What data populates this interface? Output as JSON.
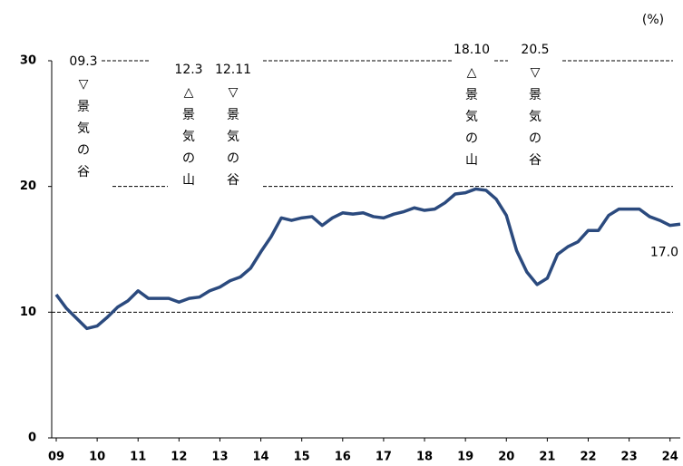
{
  "chart_data": {
    "type": "line",
    "unit": "(%)",
    "x": [
      2009,
      2009.25,
      2009.5,
      2009.75,
      2010,
      2010.25,
      2010.5,
      2010.75,
      2011,
      2011.25,
      2011.5,
      2011.75,
      2012,
      2012.25,
      2012.5,
      2012.75,
      2013,
      2013.25,
      2013.5,
      2013.75,
      2014,
      2014.25,
      2014.5,
      2014.75,
      2015,
      2015.25,
      2015.5,
      2015.75,
      2016,
      2016.25,
      2016.5,
      2016.75,
      2017,
      2017.25,
      2017.5,
      2017.75,
      2018,
      2018.25,
      2018.5,
      2018.75,
      2019,
      2019.25,
      2019.5,
      2019.75,
      2020,
      2020.25,
      2020.5,
      2020.75,
      2021,
      2021.25,
      2021.5,
      2021.75,
      2022,
      2022.25,
      2022.5,
      2022.75,
      2023,
      2023.25,
      2023.5,
      2023.75,
      2024,
      2024.25
    ],
    "series": [
      {
        "color": "#2b4a7e",
        "values": [
          11.4,
          10.3,
          9.5,
          8.7,
          8.9,
          9.6,
          10.4,
          10.9,
          11.7,
          11.1,
          11.1,
          11.1,
          10.8,
          11.1,
          11.2,
          11.7,
          12.0,
          12.5,
          12.8,
          13.5,
          14.8,
          16.0,
          17.5,
          17.3,
          17.5,
          17.6,
          16.9,
          17.5,
          17.9,
          17.8,
          17.9,
          17.6,
          17.5,
          17.8,
          18.0,
          18.3,
          18.1,
          18.2,
          18.7,
          19.4,
          19.5,
          19.8,
          19.7,
          19.0,
          17.7,
          14.9,
          13.2,
          12.2,
          12.7,
          14.6,
          15.2,
          15.6,
          16.5,
          16.5,
          17.7,
          18.2,
          18.2,
          18.2,
          17.6,
          17.3,
          16.9,
          17.0
        ],
        "value_labels": [
          null,
          null,
          null,
          null,
          null,
          null,
          null,
          null,
          null,
          null,
          null,
          null,
          null,
          null,
          null,
          null,
          null,
          null,
          null,
          null,
          null,
          null,
          null,
          null,
          null,
          null,
          null,
          null,
          null,
          null,
          null,
          null,
          null,
          null,
          null,
          null,
          null,
          null,
          null,
          null,
          null,
          null,
          null,
          null,
          null,
          null,
          null,
          null,
          null,
          null,
          null,
          null,
          null,
          null,
          null,
          null,
          null,
          null,
          null,
          null,
          null,
          "17.0"
        ]
      }
    ],
    "xlim": [
      2009,
      2024.25
    ],
    "xticks": [
      {
        "value": 2009,
        "label": "09"
      },
      {
        "value": 2010,
        "label": "10"
      },
      {
        "value": 2011,
        "label": "11"
      },
      {
        "value": 2012,
        "label": "12"
      },
      {
        "value": 2013,
        "label": "13"
      },
      {
        "value": 2014,
        "label": "14"
      },
      {
        "value": 2015,
        "label": "15"
      },
      {
        "value": 2016,
        "label": "16"
      },
      {
        "value": 2017,
        "label": "17"
      },
      {
        "value": 2018,
        "label": "18"
      },
      {
        "value": 2019,
        "label": "19"
      },
      {
        "value": 2020,
        "label": "20"
      },
      {
        "value": 2021,
        "label": "21"
      },
      {
        "value": 2022,
        "label": "22"
      },
      {
        "value": 2023,
        "label": "23"
      },
      {
        "value": 2024,
        "label": "24"
      }
    ],
    "ylim": [
      0,
      30
    ],
    "yticks": [
      0,
      10,
      20,
      30
    ],
    "grid": true,
    "annotations": [
      {
        "date": "09.3",
        "mark": "▽",
        "text": [
          "景",
          "気",
          "の",
          "谷"
        ]
      },
      {
        "date": "12.3",
        "mark": "△",
        "text": [
          "景",
          "気",
          "の",
          "山"
        ]
      },
      {
        "date": "12.11",
        "mark": "▽",
        "text": [
          "景",
          "気",
          "の",
          "谷"
        ]
      },
      {
        "date": "18.10",
        "mark": "△",
        "text": [
          "景",
          "気",
          "の",
          "山"
        ]
      },
      {
        "date": "20.5",
        "mark": "▽",
        "text": [
          "景",
          "気",
          "の",
          "谷"
        ]
      }
    ]
  }
}
